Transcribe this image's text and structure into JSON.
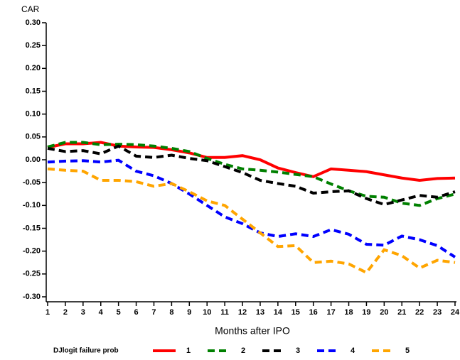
{
  "chart_data": {
    "type": "line",
    "y_label": "CAR",
    "x_label": "Months after IPO",
    "legend_title": "DJlogit failure prob",
    "legend_position": "bottom",
    "x": [
      1,
      2,
      3,
      4,
      5,
      6,
      7,
      8,
      9,
      10,
      11,
      12,
      13,
      14,
      15,
      16,
      17,
      18,
      19,
      20,
      21,
      22,
      23,
      24
    ],
    "xlim": [
      1,
      24
    ],
    "xticks": [
      1,
      2,
      3,
      4,
      5,
      6,
      7,
      8,
      9,
      10,
      11,
      12,
      13,
      14,
      15,
      16,
      17,
      18,
      19,
      20,
      21,
      22,
      23,
      24
    ],
    "ylim": [
      -0.3,
      0.3
    ],
    "yticks": [
      {
        "value": 0.3,
        "label": "0.30"
      },
      0.25,
      {
        "value": 0.2,
        "label": "0.20"
      },
      0.15,
      {
        "value": 0.1,
        "label": "0.10"
      },
      0.05,
      {
        "value": 0,
        "label": "0.00"
      },
      -0.05,
      {
        "value": -0.1,
        "label": "-0.10"
      },
      -0.15,
      {
        "value": -0.2,
        "label": "-0.20"
      },
      -0.25,
      {
        "value": -0.3,
        "label": "-0.30"
      }
    ],
    "series": [
      {
        "name": "1",
        "color": "#ff0000",
        "style": "solid",
        "values": [
          0.027,
          0.035,
          0.035,
          0.038,
          0.03,
          0.028,
          0.027,
          0.022,
          0.015,
          0.005,
          0.005,
          0.009,
          0.0,
          -0.018,
          -0.028,
          -0.037,
          -0.02,
          -0.023,
          -0.026,
          -0.033,
          -0.04,
          -0.045,
          -0.041,
          -0.04
        ]
      },
      {
        "name": "2",
        "color": "#008000",
        "style": "dashed",
        "values": [
          0.028,
          0.038,
          0.038,
          0.033,
          0.034,
          0.033,
          0.03,
          0.025,
          0.018,
          0.003,
          -0.01,
          -0.02,
          -0.023,
          -0.027,
          -0.032,
          -0.037,
          -0.053,
          -0.068,
          -0.08,
          -0.082,
          -0.095,
          -0.1,
          -0.085,
          -0.075
        ]
      },
      {
        "name": "3",
        "color": "#000000",
        "style": "dashed",
        "values": [
          0.025,
          0.018,
          0.02,
          0.013,
          0.03,
          0.008,
          0.005,
          0.01,
          0.003,
          -0.002,
          -0.015,
          -0.028,
          -0.045,
          -0.052,
          -0.058,
          -0.073,
          -0.07,
          -0.068,
          -0.085,
          -0.098,
          -0.088,
          -0.078,
          -0.082,
          -0.07
        ]
      },
      {
        "name": "4",
        "color": "#0000ff",
        "style": "dashed",
        "values": [
          -0.005,
          -0.003,
          -0.002,
          -0.005,
          -0.001,
          -0.025,
          -0.035,
          -0.052,
          -0.075,
          -0.1,
          -0.125,
          -0.14,
          -0.16,
          -0.168,
          -0.162,
          -0.168,
          -0.153,
          -0.163,
          -0.185,
          -0.187,
          -0.167,
          -0.175,
          -0.188,
          -0.213
        ]
      },
      {
        "name": "5",
        "color": "#ffa500",
        "style": "dashed",
        "values": [
          -0.02,
          -0.023,
          -0.025,
          -0.045,
          -0.045,
          -0.048,
          -0.058,
          -0.052,
          -0.07,
          -0.09,
          -0.1,
          -0.13,
          -0.16,
          -0.19,
          -0.188,
          -0.225,
          -0.222,
          -0.228,
          -0.247,
          -0.197,
          -0.21,
          -0.237,
          -0.22,
          -0.225
        ]
      }
    ]
  }
}
